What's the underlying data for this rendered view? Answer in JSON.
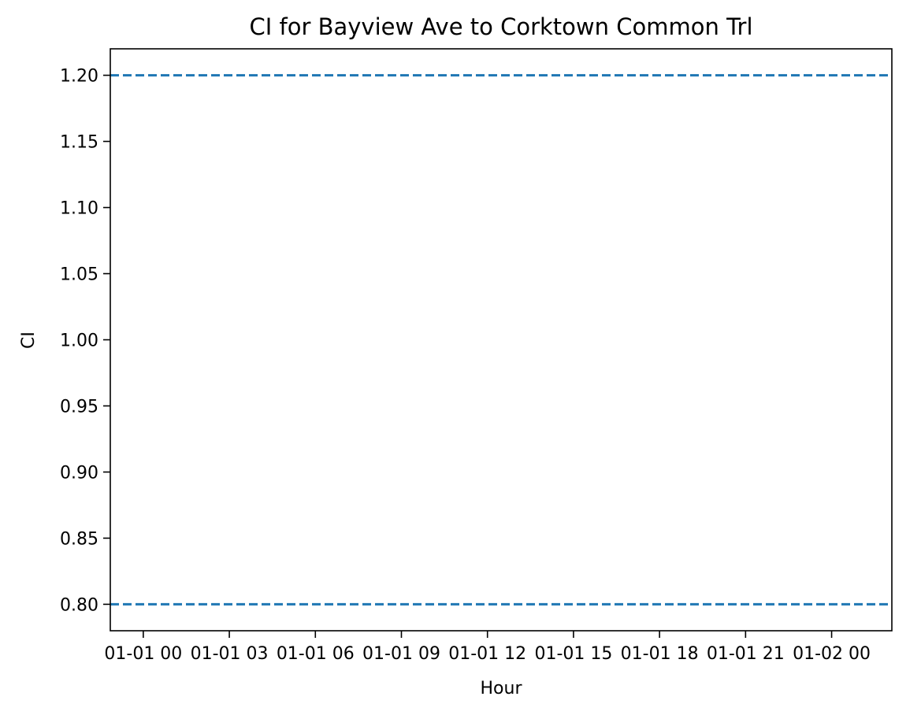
{
  "chart_data": {
    "type": "line",
    "title": "CI for Bayview Ave to Corktown Common Trl",
    "xlabel": "Hour",
    "ylabel": "CI",
    "xlim": [
      "2023-12-31 22:51",
      "2024-01-02 02:06"
    ],
    "ylim": [
      0.78,
      1.22
    ],
    "x_ticks": [
      {
        "value": "2024-01-01 00:00",
        "label": "01-01 00"
      },
      {
        "value": "2024-01-01 03:00",
        "label": "01-01 03"
      },
      {
        "value": "2024-01-01 06:00",
        "label": "01-01 06"
      },
      {
        "value": "2024-01-01 09:00",
        "label": "01-01 09"
      },
      {
        "value": "2024-01-01 12:00",
        "label": "01-01 12"
      },
      {
        "value": "2024-01-01 15:00",
        "label": "01-01 15"
      },
      {
        "value": "2024-01-01 18:00",
        "label": "01-01 18"
      },
      {
        "value": "2024-01-01 21:00",
        "label": "01-01 21"
      },
      {
        "value": "2024-01-02 00:00",
        "label": "01-02 00"
      }
    ],
    "y_ticks": [
      {
        "value": 0.8,
        "label": "0.80"
      },
      {
        "value": 0.85,
        "label": "0.85"
      },
      {
        "value": 0.9,
        "label": "0.90"
      },
      {
        "value": 0.95,
        "label": "0.95"
      },
      {
        "value": 1.0,
        "label": "1.00"
      },
      {
        "value": 1.05,
        "label": "1.05"
      },
      {
        "value": 1.1,
        "label": "1.10"
      },
      {
        "value": 1.15,
        "label": "1.15"
      },
      {
        "value": 1.2,
        "label": "1.20"
      }
    ],
    "hlines": [
      {
        "value": 1.2,
        "style": "dashed",
        "color": "#1f77b4"
      },
      {
        "value": 0.8,
        "style": "dashed",
        "color": "#1f77b4"
      }
    ],
    "series": [],
    "grid": false,
    "legend": "none"
  }
}
